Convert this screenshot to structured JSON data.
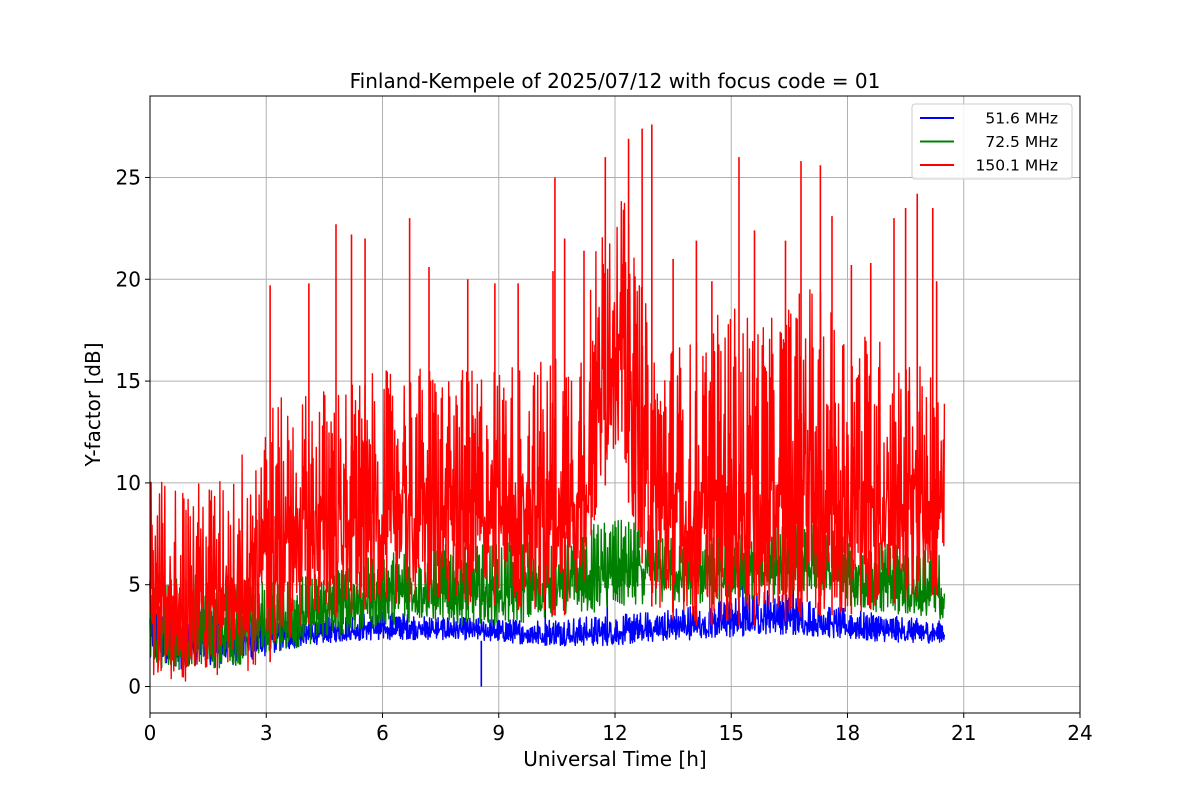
{
  "chart_data": {
    "type": "line",
    "title": "Finland-Kempele of 2025/07/12 with focus code = 01",
    "xlabel": "Universal Time [h]",
    "ylabel": "Y-factor [dB]",
    "xlim": [
      0,
      24
    ],
    "ylim": [
      -1.3,
      29
    ],
    "xticks": [
      0,
      3,
      6,
      9,
      12,
      15,
      18,
      21,
      24
    ],
    "yticks": [
      0,
      5,
      10,
      15,
      20,
      25
    ],
    "grid": true,
    "legend_position": "top-right",
    "series": [
      {
        "name": "51.6 MHz",
        "color": "#0000ff",
        "x": [
          0,
          1,
          2,
          3,
          4,
          5,
          6,
          7,
          8,
          9,
          10,
          11,
          12,
          13,
          14,
          15,
          16,
          17,
          18,
          19,
          20,
          20.5
        ],
        "low": [
          1.0,
          0.8,
          1.0,
          1.5,
          2.0,
          2.2,
          2.3,
          2.3,
          2.3,
          2.2,
          2.0,
          2.0,
          2.0,
          2.2,
          2.3,
          2.4,
          2.6,
          2.5,
          2.3,
          2.2,
          2.1,
          2.2
        ],
        "high": [
          4.0,
          3.8,
          3.8,
          3.5,
          3.2,
          3.5,
          3.7,
          3.5,
          3.4,
          3.3,
          3.3,
          3.4,
          3.5,
          3.7,
          4.0,
          4.3,
          4.8,
          4.3,
          3.8,
          3.5,
          3.3,
          3.2
        ],
        "spikes": [
          [
            8.55,
            0.0
          ],
          [
            15.3,
            5.2
          ],
          [
            16.6,
            5.5
          ],
          [
            11.8,
            5.2
          ],
          [
            10.2,
            4.8
          ],
          [
            5.9,
            4.5
          ]
        ]
      },
      {
        "name": "72.5 MHz",
        "color": "#008000",
        "x": [
          0,
          1,
          2,
          3,
          4,
          5,
          6,
          7,
          8,
          9,
          10,
          11,
          12,
          13,
          14,
          15,
          16,
          17,
          18,
          19,
          20,
          20.5
        ],
        "low": [
          0.8,
          0.7,
          0.8,
          1.5,
          2.0,
          2.5,
          3.0,
          3.2,
          3.0,
          3.0,
          3.2,
          3.5,
          3.8,
          4.0,
          4.0,
          4.0,
          4.5,
          4.5,
          4.0,
          3.5,
          3.2,
          3.0
        ],
        "high": [
          6.0,
          5.5,
          5.5,
          5.2,
          5.5,
          6.0,
          6.5,
          7.0,
          7.0,
          7.0,
          7.2,
          7.8,
          8.2,
          8.0,
          7.5,
          7.5,
          8.0,
          8.0,
          7.5,
          7.0,
          6.8,
          6.5
        ],
        "spikes": []
      },
      {
        "name": "150.1 MHz",
        "color": "#ff0000",
        "x": [
          0,
          1,
          2,
          3,
          4,
          5,
          6,
          7,
          8,
          9,
          10,
          11,
          12,
          13,
          14,
          15,
          16,
          17,
          18,
          19,
          20,
          20.5
        ],
        "low": [
          0.1,
          0.2,
          0.5,
          1.0,
          3.0,
          3.5,
          4.0,
          4.2,
          4.0,
          4.0,
          3.5,
          3.5,
          12.0,
          3.5,
          3.0,
          3.0,
          3.0,
          3.5,
          3.5,
          4.0,
          4.5,
          4.5
        ],
        "high": [
          10.5,
          10.0,
          10.3,
          14.0,
          14.5,
          15.0,
          15.5,
          15.8,
          15.5,
          16.0,
          16.0,
          17.0,
          26.0,
          17.0,
          17.0,
          19.0,
          18.0,
          20.0,
          18.0,
          17.0,
          16.0,
          14.0
        ],
        "spikes": [
          [
            3.1,
            19.7
          ],
          [
            4.1,
            19.8
          ],
          [
            4.8,
            22.7
          ],
          [
            5.2,
            22.2
          ],
          [
            5.55,
            22.0
          ],
          [
            6.7,
            23.0
          ],
          [
            7.2,
            20.6
          ],
          [
            8.2,
            20.0
          ],
          [
            8.9,
            19.8
          ],
          [
            9.5,
            19.8
          ],
          [
            10.4,
            20.4
          ],
          [
            10.45,
            25.0
          ],
          [
            10.7,
            22.0
          ],
          [
            11.2,
            21.4
          ],
          [
            11.75,
            26.0
          ],
          [
            12.35,
            26.9
          ],
          [
            12.7,
            27.4
          ],
          [
            12.95,
            27.6
          ],
          [
            13.5,
            21.0
          ],
          [
            14.1,
            21.9
          ],
          [
            14.5,
            19.9
          ],
          [
            15.2,
            26.0
          ],
          [
            15.6,
            22.4
          ],
          [
            16.4,
            21.9
          ],
          [
            16.8,
            25.8
          ],
          [
            17.3,
            25.6
          ],
          [
            17.6,
            23.1
          ],
          [
            18.1,
            20.7
          ],
          [
            18.6,
            20.8
          ],
          [
            19.2,
            23.0
          ],
          [
            19.5,
            23.5
          ],
          [
            19.8,
            24.2
          ],
          [
            20.2,
            23.5
          ],
          [
            20.3,
            19.9
          ]
        ]
      }
    ]
  }
}
